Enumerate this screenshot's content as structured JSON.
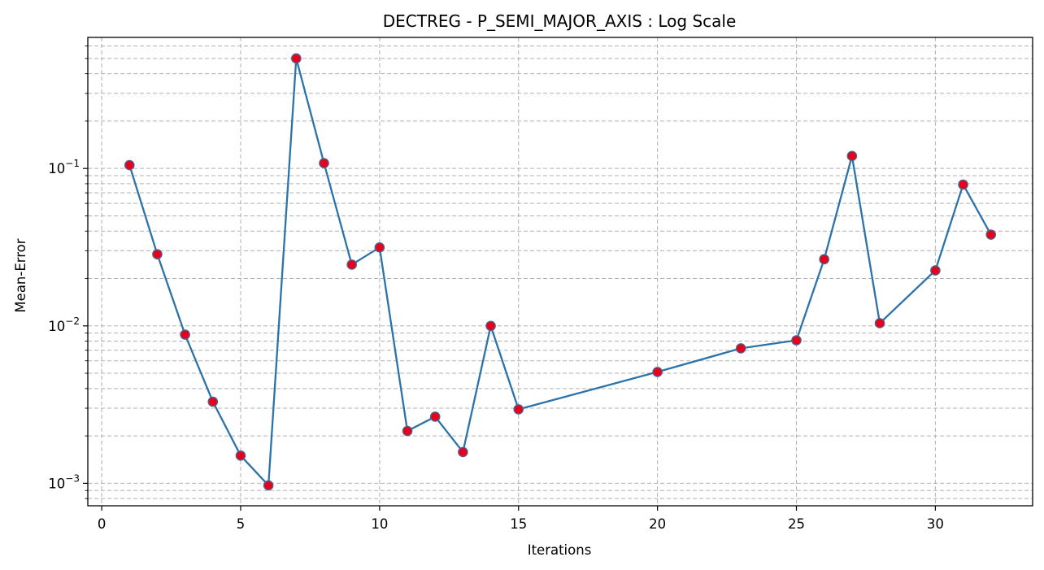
{
  "chart_data": {
    "type": "line",
    "title": "DECTREG - P_SEMI_MAJOR_AXIS : Log Scale",
    "xlabel": "Iterations",
    "ylabel": "Mean-Error",
    "y_scale": "log",
    "xlim": [
      -0.5,
      33.5
    ],
    "ylim": [
      0.00072,
      0.68
    ],
    "x_ticks": [
      0,
      5,
      10,
      15,
      20,
      25,
      30
    ],
    "y_major_ticks": [
      {
        "value": 0.001,
        "base": "10",
        "exponent": "−3"
      },
      {
        "value": 0.01,
        "base": "10",
        "exponent": "−2"
      },
      {
        "value": 0.1,
        "base": "10",
        "exponent": "−1"
      }
    ],
    "grid": true,
    "grid_style": "dashed",
    "line_color": "#2b73a8",
    "marker_fill": "#e8001a",
    "marker_edge": "#555e8c",
    "series": [
      {
        "x": [
          1,
          2,
          3,
          4,
          5,
          6,
          7,
          8,
          9,
          10,
          11,
          12,
          13,
          14,
          15,
          20,
          23,
          25,
          26,
          27,
          28,
          30,
          31,
          32
        ],
        "y": [
          0.105,
          0.0285,
          0.0088,
          0.0033,
          0.0015,
          0.00097,
          0.5,
          0.108,
          0.0245,
          0.0315,
          0.00215,
          0.00265,
          0.00158,
          0.01,
          0.00295,
          0.0051,
          0.0072,
          0.0081,
          0.0265,
          0.12,
          0.0104,
          0.0225,
          0.079,
          0.038
        ]
      }
    ]
  }
}
